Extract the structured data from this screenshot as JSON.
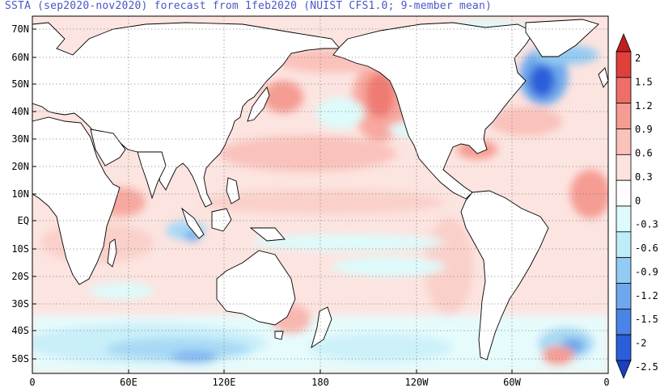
{
  "title": "SSTA (sep2020-nov2020) forecast from 1feb2020 (NUIST CFS1.0; 9-member mean)",
  "lat_labels": [
    "70N",
    "60N",
    "50N",
    "40N",
    "30N",
    "20N",
    "10N",
    "EQ",
    "10S",
    "20S",
    "30S",
    "40S",
    "50S"
  ],
  "lon_labels": [
    "0",
    "60E",
    "120E",
    "180",
    "120W",
    "60W",
    "0"
  ],
  "colorbar": {
    "levels": [
      "2",
      "1.5",
      "1.2",
      "0.9",
      "0.6",
      "0.3",
      "0",
      "-0.3",
      "-0.6",
      "-0.9",
      "-1.2",
      "-1.5",
      "-2",
      "-2.5"
    ],
    "colors": [
      "#c21e1e",
      "#e0403c",
      "#ef6f68",
      "#f59c93",
      "#f9c2bb",
      "#fde3df",
      "#ffffff",
      "#ddfbfb",
      "#bdeef8",
      "#93cbf2",
      "#6ea8ec",
      "#4a84e6",
      "#2a5fd9",
      "#1a3fc0"
    ]
  },
  "land_color": "#ffffff",
  "grid_style": "dotted"
}
